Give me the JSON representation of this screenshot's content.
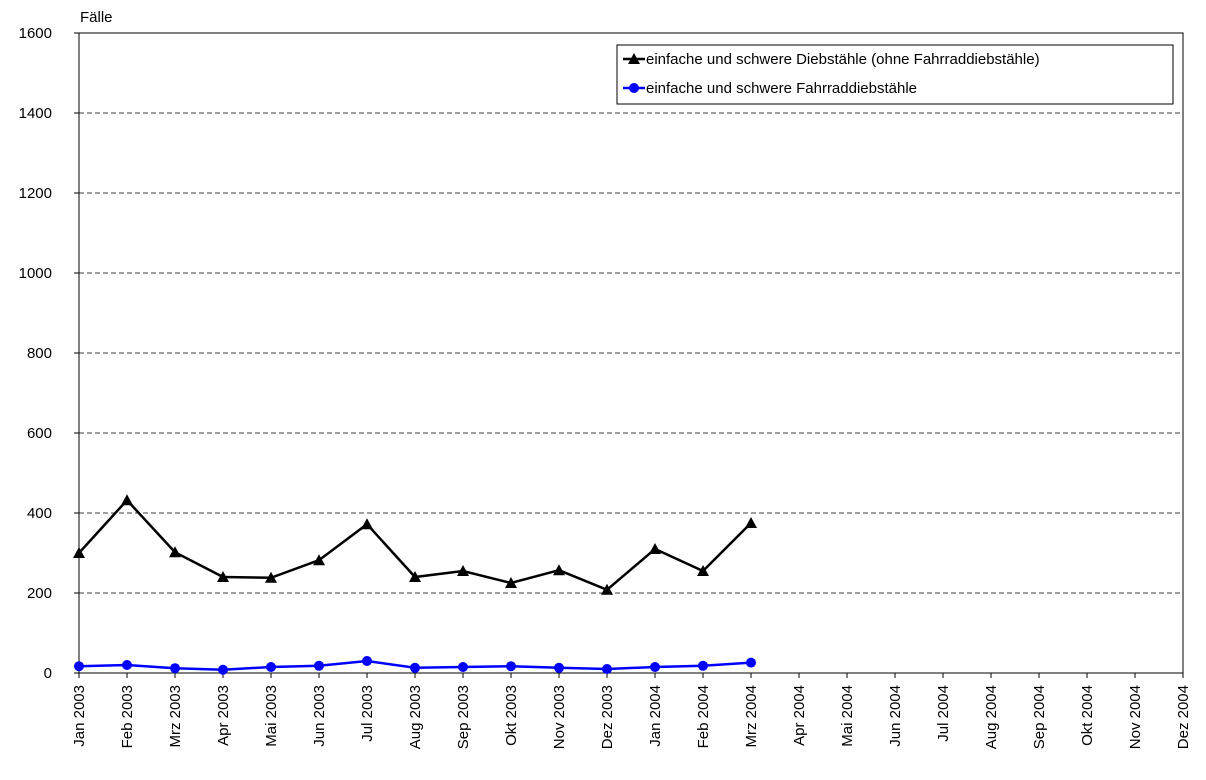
{
  "chart_data": {
    "type": "line",
    "y_label": "Fälle",
    "categories": [
      "Jan 2003",
      "Feb 2003",
      "Mrz 2003",
      "Apr 2003",
      "Mai 2003",
      "Jun 2003",
      "Jul 2003",
      "Aug 2003",
      "Sep 2003",
      "Okt 2003",
      "Nov 2003",
      "Dez 2003",
      "Jan 2004",
      "Feb 2004",
      "Mrz 2004",
      "Apr 2004",
      "Mai 2004",
      "Jun 2004",
      "Jul 2004",
      "Aug 2004",
      "Sep 2004",
      "Okt 2004",
      "Nov 2004",
      "Dez 2004"
    ],
    "series": [
      {
        "name": "einfache und schwere Diebstähle (ohne Fahrraddiebstähle)",
        "color": "#000000",
        "marker": "triangle",
        "values": [
          300,
          432,
          302,
          240,
          238,
          282,
          372,
          240,
          255,
          225,
          257,
          208,
          310,
          255,
          375,
          null,
          null,
          null,
          null,
          null,
          null,
          null,
          null,
          null
        ]
      },
      {
        "name": "einfache und schwere Fahrraddiebstähle",
        "color": "#0000ff",
        "marker": "circle",
        "values": [
          17,
          20,
          12,
          8,
          15,
          18,
          30,
          13,
          15,
          17,
          13,
          10,
          15,
          18,
          26,
          null,
          null,
          null,
          null,
          null,
          null,
          null,
          null,
          null
        ]
      }
    ],
    "ylim": [
      0,
      1600
    ],
    "yticks": [
      0,
      200,
      400,
      600,
      800,
      1000,
      1200,
      1400,
      1600
    ],
    "grid": true,
    "legend": "top-right"
  }
}
